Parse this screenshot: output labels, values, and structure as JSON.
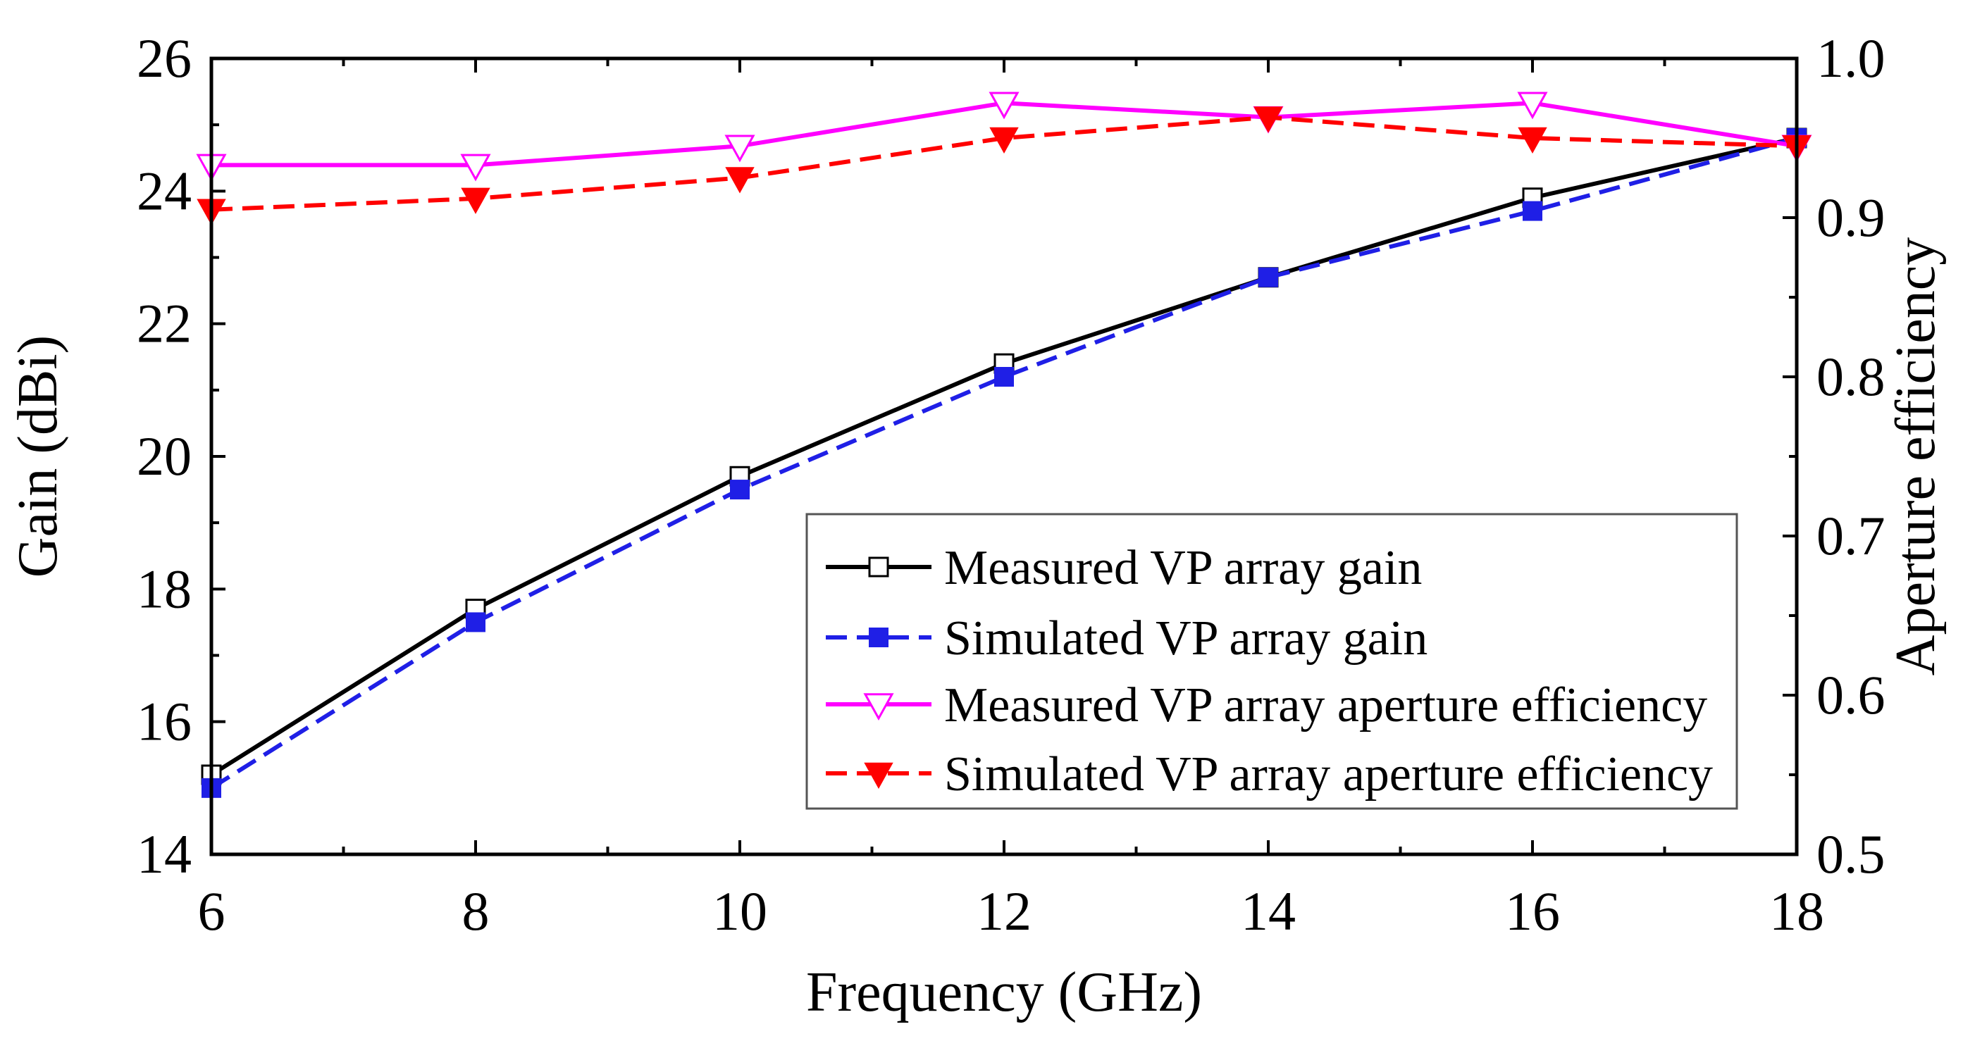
{
  "chart_data": {
    "type": "line",
    "title": "",
    "xlabel": "Frequency (GHz)",
    "ylabel": "Gain (dBi)",
    "y2label": "Aperture efficiency",
    "xlim": [
      6,
      18
    ],
    "ylim": [
      14,
      26
    ],
    "y2lim": [
      0.5,
      1.0
    ],
    "xticks": [
      "6",
      "8",
      "10",
      "12",
      "14",
      "16",
      "18"
    ],
    "yticks": [
      "14",
      "16",
      "18",
      "20",
      "22",
      "24",
      "26"
    ],
    "y2ticks": [
      "0.5",
      "0.6",
      "0.7",
      "0.8",
      "0.9",
      "1.0"
    ],
    "grid": false,
    "legend_position": "bottom-right",
    "series": [
      {
        "name": "Measured VP array gain",
        "axis": "left",
        "color": "#000000",
        "line": "solid",
        "marker": "square-open",
        "x": [
          6,
          8,
          10,
          12,
          14,
          16,
          18
        ],
        "y": [
          15.2,
          17.7,
          19.7,
          21.4,
          22.7,
          23.9,
          24.8
        ]
      },
      {
        "name": "Simulated VP array gain",
        "axis": "left",
        "color": "#1f1fe6",
        "line": "dashed",
        "marker": "square-filled",
        "x": [
          6,
          8,
          10,
          12,
          14,
          16,
          18
        ],
        "y": [
          15.0,
          17.5,
          19.5,
          21.2,
          22.7,
          23.7,
          24.8
        ]
      },
      {
        "name": "Measured VP array aperture efficiency",
        "axis": "right",
        "color": "#ff00ff",
        "line": "solid",
        "marker": "triangle-down-open",
        "x": [
          6,
          8,
          10,
          12,
          14,
          16,
          18
        ],
        "y": [
          0.933,
          0.933,
          0.945,
          0.972,
          0.963,
          0.972,
          0.945
        ]
      },
      {
        "name": "Simulated VP array aperture efficiency",
        "axis": "right",
        "color": "#ff0000",
        "line": "dashed",
        "marker": "triangle-down-filled",
        "x": [
          6,
          8,
          10,
          12,
          14,
          16,
          18
        ],
        "y": [
          0.905,
          0.912,
          0.925,
          0.95,
          0.963,
          0.95,
          0.945
        ]
      }
    ]
  }
}
